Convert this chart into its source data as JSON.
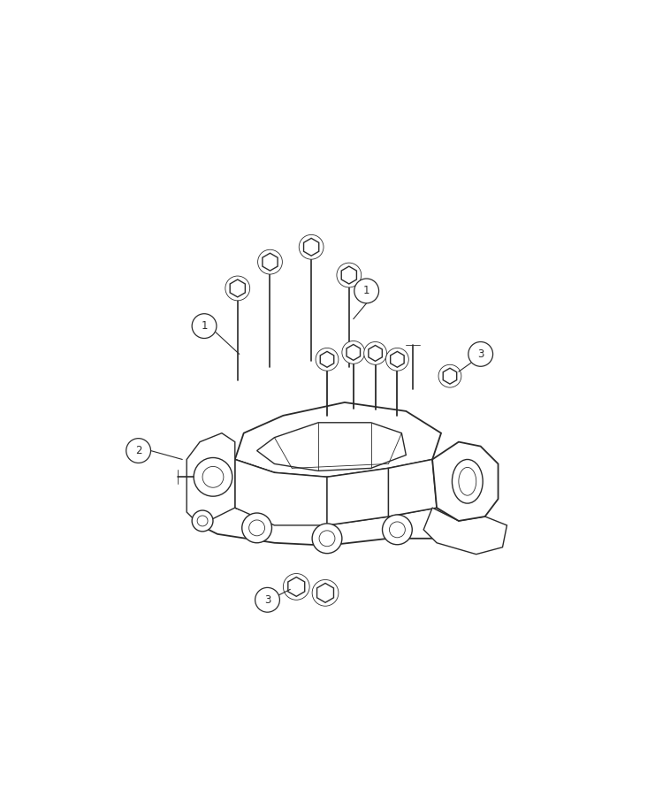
{
  "background_color": "#ffffff",
  "line_color": "#2a2a2a",
  "fig_width": 7.41,
  "fig_height": 9.0,
  "dpi": 100,
  "lw_main": 1.0,
  "lw_thin": 0.6,
  "lw_heavy": 1.3
}
